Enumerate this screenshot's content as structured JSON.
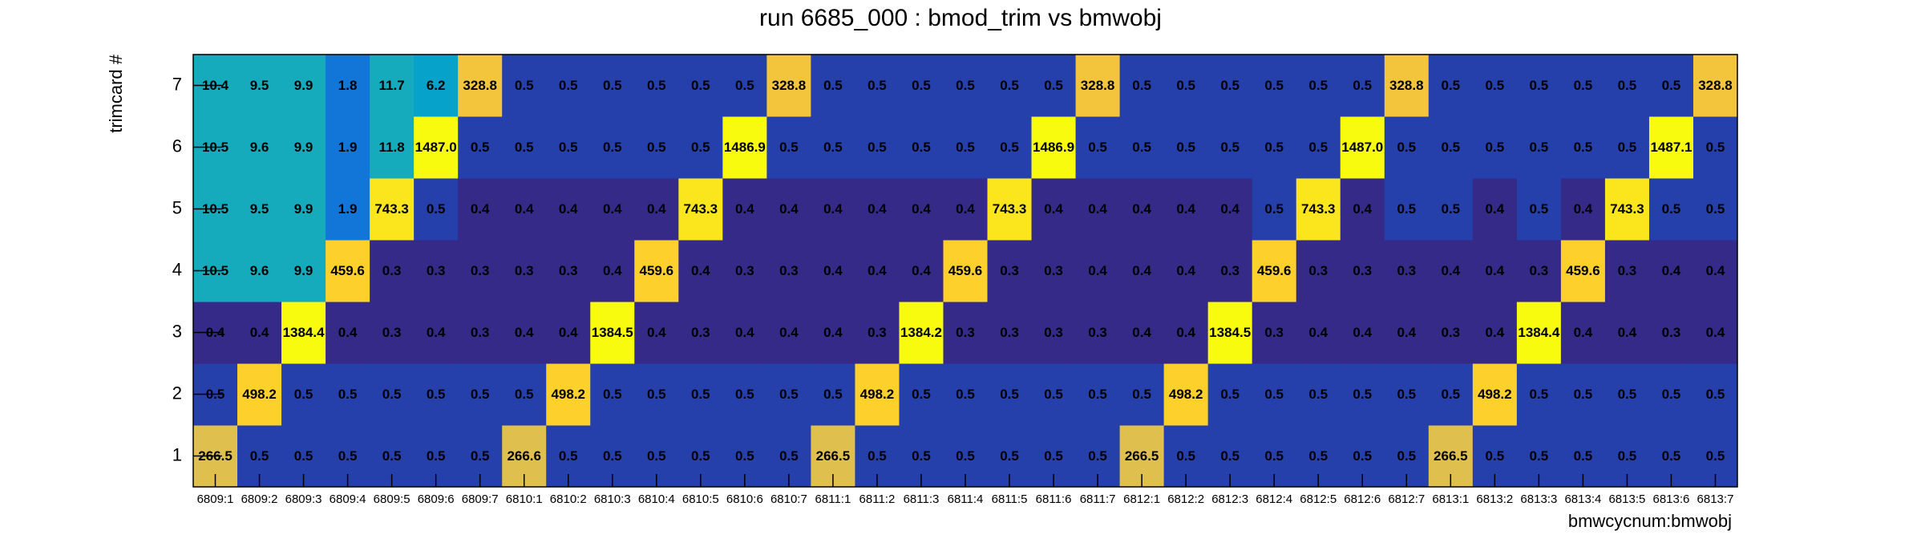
{
  "chart_data": {
    "type": "heatmap",
    "title": "run 6685_000 : bmod_trim vs bmwobj",
    "x_label": "bmwcycnum:bmwobj",
    "y_label": "trimcard #",
    "log_z": true,
    "categories": [
      "6809:1",
      "6809:2",
      "6809:3",
      "6809:4",
      "6809:5",
      "6809:6",
      "6809:7",
      "6810:1",
      "6810:2",
      "6810:3",
      "6810:4",
      "6810:5",
      "6810:6",
      "6810:7",
      "6811:1",
      "6811:2",
      "6811:3",
      "6811:4",
      "6811:5",
      "6811:6",
      "6811:7",
      "6812:1",
      "6812:2",
      "6812:3",
      "6812:4",
      "6812:5",
      "6812:6",
      "6812:7",
      "6813:1",
      "6813:2",
      "6813:3",
      "6813:4",
      "6813:5",
      "6813:6",
      "6813:7"
    ],
    "y_categories": [
      1,
      2,
      3,
      4,
      5,
      6,
      7
    ],
    "values": [
      [
        266.5,
        0.5,
        0.5,
        0.5,
        0.5,
        0.5,
        0.5,
        266.6,
        0.5,
        0.5,
        0.5,
        0.5,
        0.5,
        0.5,
        266.5,
        0.5,
        0.5,
        0.5,
        0.5,
        0.5,
        0.5,
        266.5,
        0.5,
        0.5,
        0.5,
        0.5,
        0.5,
        0.5,
        266.5,
        0.5,
        0.5,
        0.5,
        0.5,
        0.5,
        0.5
      ],
      [
        0.5,
        498.2,
        0.5,
        0.5,
        0.5,
        0.5,
        0.5,
        0.5,
        498.2,
        0.5,
        0.5,
        0.5,
        0.5,
        0.5,
        0.5,
        498.2,
        0.5,
        0.5,
        0.5,
        0.5,
        0.5,
        0.5,
        498.2,
        0.5,
        0.5,
        0.5,
        0.5,
        0.5,
        0.5,
        498.2,
        0.5,
        0.5,
        0.5,
        0.5,
        0.5
      ],
      [
        0.4,
        0.4,
        1384.4,
        0.4,
        0.3,
        0.4,
        0.3,
        0.4,
        0.4,
        1384.5,
        0.4,
        0.3,
        0.4,
        0.4,
        0.4,
        0.3,
        1384.2,
        0.3,
        0.3,
        0.3,
        0.3,
        0.4,
        0.4,
        1384.5,
        0.3,
        0.4,
        0.4,
        0.4,
        0.3,
        0.4,
        1384.4,
        0.4,
        0.4,
        0.3,
        0.4
      ],
      [
        10.5,
        9.6,
        9.9,
        459.6,
        0.3,
        0.3,
        0.3,
        0.3,
        0.3,
        0.4,
        459.6,
        0.4,
        0.3,
        0.3,
        0.4,
        0.4,
        0.4,
        459.6,
        0.3,
        0.3,
        0.4,
        0.4,
        0.4,
        0.3,
        459.6,
        0.3,
        0.3,
        0.3,
        0.4,
        0.4,
        0.3,
        459.6,
        0.3,
        0.4,
        0.4
      ],
      [
        10.5,
        9.5,
        9.9,
        1.9,
        743.3,
        0.5,
        0.4,
        0.4,
        0.4,
        0.4,
        0.4,
        743.3,
        0.4,
        0.4,
        0.4,
        0.4,
        0.4,
        0.4,
        743.3,
        0.4,
        0.4,
        0.4,
        0.4,
        0.4,
        0.5,
        743.3,
        0.4,
        0.5,
        0.5,
        0.4,
        0.5,
        0.4,
        743.3,
        0.5,
        0.5
      ],
      [
        10.5,
        9.6,
        9.9,
        1.9,
        11.8,
        1487.0,
        0.5,
        0.5,
        0.5,
        0.5,
        0.5,
        0.5,
        1486.9,
        0.5,
        0.5,
        0.5,
        0.5,
        0.5,
        0.5,
        1486.9,
        0.5,
        0.5,
        0.5,
        0.5,
        0.5,
        0.5,
        1487.0,
        0.5,
        0.5,
        0.5,
        0.5,
        0.5,
        0.5,
        1487.1,
        0.5
      ],
      [
        10.4,
        9.5,
        9.9,
        1.8,
        11.7,
        6.2,
        328.8,
        0.5,
        0.5,
        0.5,
        0.5,
        0.5,
        0.5,
        328.8,
        0.5,
        0.5,
        0.5,
        0.5,
        0.5,
        0.5,
        328.8,
        0.5,
        0.5,
        0.5,
        0.5,
        0.5,
        0.5,
        328.8,
        0.5,
        0.5,
        0.5,
        0.5,
        0.5,
        0.5,
        328.8
      ]
    ],
    "value_labels": [
      [
        "266.5",
        "0.5",
        "0.5",
        "0.5",
        "0.5",
        "0.5",
        "0.5",
        "266.6",
        "0.5",
        "0.5",
        "0.5",
        "0.5",
        "0.5",
        "0.5",
        "266.5",
        "0.5",
        "0.5",
        "0.5",
        "0.5",
        "0.5",
        "0.5",
        "266.5",
        "0.5",
        "0.5",
        "0.5",
        "0.5",
        "0.5",
        "0.5",
        "266.5",
        "0.5",
        "0.5",
        "0.5",
        "0.5",
        "0.5",
        "0.5"
      ],
      [
        "0.5",
        "498.2",
        "0.5",
        "0.5",
        "0.5",
        "0.5",
        "0.5",
        "0.5",
        "498.2",
        "0.5",
        "0.5",
        "0.5",
        "0.5",
        "0.5",
        "0.5",
        "498.2",
        "0.5",
        "0.5",
        "0.5",
        "0.5",
        "0.5",
        "0.5",
        "498.2",
        "0.5",
        "0.5",
        "0.5",
        "0.5",
        "0.5",
        "0.5",
        "498.2",
        "0.5",
        "0.5",
        "0.5",
        "0.5",
        "0.5"
      ],
      [
        "0.4",
        "0.4",
        "1384.4",
        "0.4",
        "0.3",
        "0.4",
        "0.3",
        "0.4",
        "0.4",
        "1384.5",
        "0.4",
        "0.3",
        "0.4",
        "0.4",
        "0.4",
        "0.3",
        "1384.2",
        "0.3",
        "0.3",
        "0.3",
        "0.3",
        "0.4",
        "0.4",
        "1384.5",
        "0.3",
        "0.4",
        "0.4",
        "0.4",
        "0.3",
        "0.4",
        "1384.4",
        "0.4",
        "0.4",
        "0.3",
        "0.4"
      ],
      [
        "10.5",
        "9.6",
        "9.9",
        "459.6",
        "0.3",
        "0.3",
        "0.3",
        "0.3",
        "0.3",
        "0.4",
        "459.6",
        "0.4",
        "0.3",
        "0.3",
        "0.4",
        "0.4",
        "0.4",
        "459.6",
        "0.3",
        "0.3",
        "0.4",
        "0.4",
        "0.4",
        "0.3",
        "459.6",
        "0.3",
        "0.3",
        "0.3",
        "0.4",
        "0.4",
        "0.3",
        "459.6",
        "0.3",
        "0.4",
        "0.4"
      ],
      [
        "10.5",
        "9.5",
        "9.9",
        "1.9",
        "743.3",
        "0.5",
        "0.4",
        "0.4",
        "0.4",
        "0.4",
        "0.4",
        "743.3",
        "0.4",
        "0.4",
        "0.4",
        "0.4",
        "0.4",
        "0.4",
        "743.3",
        "0.4",
        "0.4",
        "0.4",
        "0.4",
        "0.4",
        "0.5",
        "743.3",
        "0.4",
        "0.5",
        "0.5",
        "0.4",
        "0.5",
        "0.4",
        "743.3",
        "0.5",
        "0.5"
      ],
      [
        "10.5",
        "9.6",
        "9.9",
        "1.9",
        "11.8",
        "1487.0",
        "0.5",
        "0.5",
        "0.5",
        "0.5",
        "0.5",
        "0.5",
        "1486.9",
        "0.5",
        "0.5",
        "0.5",
        "0.5",
        "0.5",
        "0.5",
        "1486.9",
        "0.5",
        "0.5",
        "0.5",
        "0.5",
        "0.5",
        "0.5",
        "1487.0",
        "0.5",
        "0.5",
        "0.5",
        "0.5",
        "0.5",
        "0.5",
        "1487.1",
        "0.5"
      ],
      [
        "10.4",
        "9.5",
        "9.9",
        "1.8",
        "11.7",
        "6.2",
        "328.8",
        "0.5",
        "0.5",
        "0.5",
        "0.5",
        "0.5",
        "0.5",
        "328.8",
        "0.5",
        "0.5",
        "0.5",
        "0.5",
        "0.5",
        "0.5",
        "328.8",
        "0.5",
        "0.5",
        "0.5",
        "0.5",
        "0.5",
        "0.5",
        "328.8",
        "0.5",
        "0.5",
        "0.5",
        "0.5",
        "0.5",
        "0.5",
        "328.8"
      ]
    ]
  }
}
